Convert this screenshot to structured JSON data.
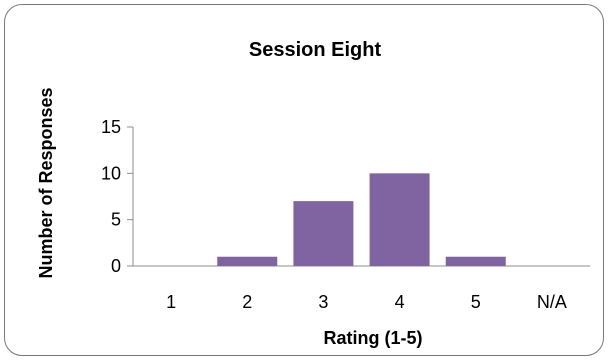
{
  "chart_data": {
    "type": "bar",
    "title": "Session Eight",
    "xlabel": "Rating  (1-5)",
    "ylabel": "Number of Responses",
    "categories": [
      "1",
      "2",
      "3",
      "4",
      "5",
      "N/A"
    ],
    "values": [
      0,
      1,
      7,
      10,
      1,
      0
    ],
    "ylim": [
      0,
      15
    ],
    "yticks": [
      "0",
      "5",
      "10",
      "15"
    ],
    "grid": false,
    "legend": "none",
    "bar_color": "#8064A2"
  }
}
